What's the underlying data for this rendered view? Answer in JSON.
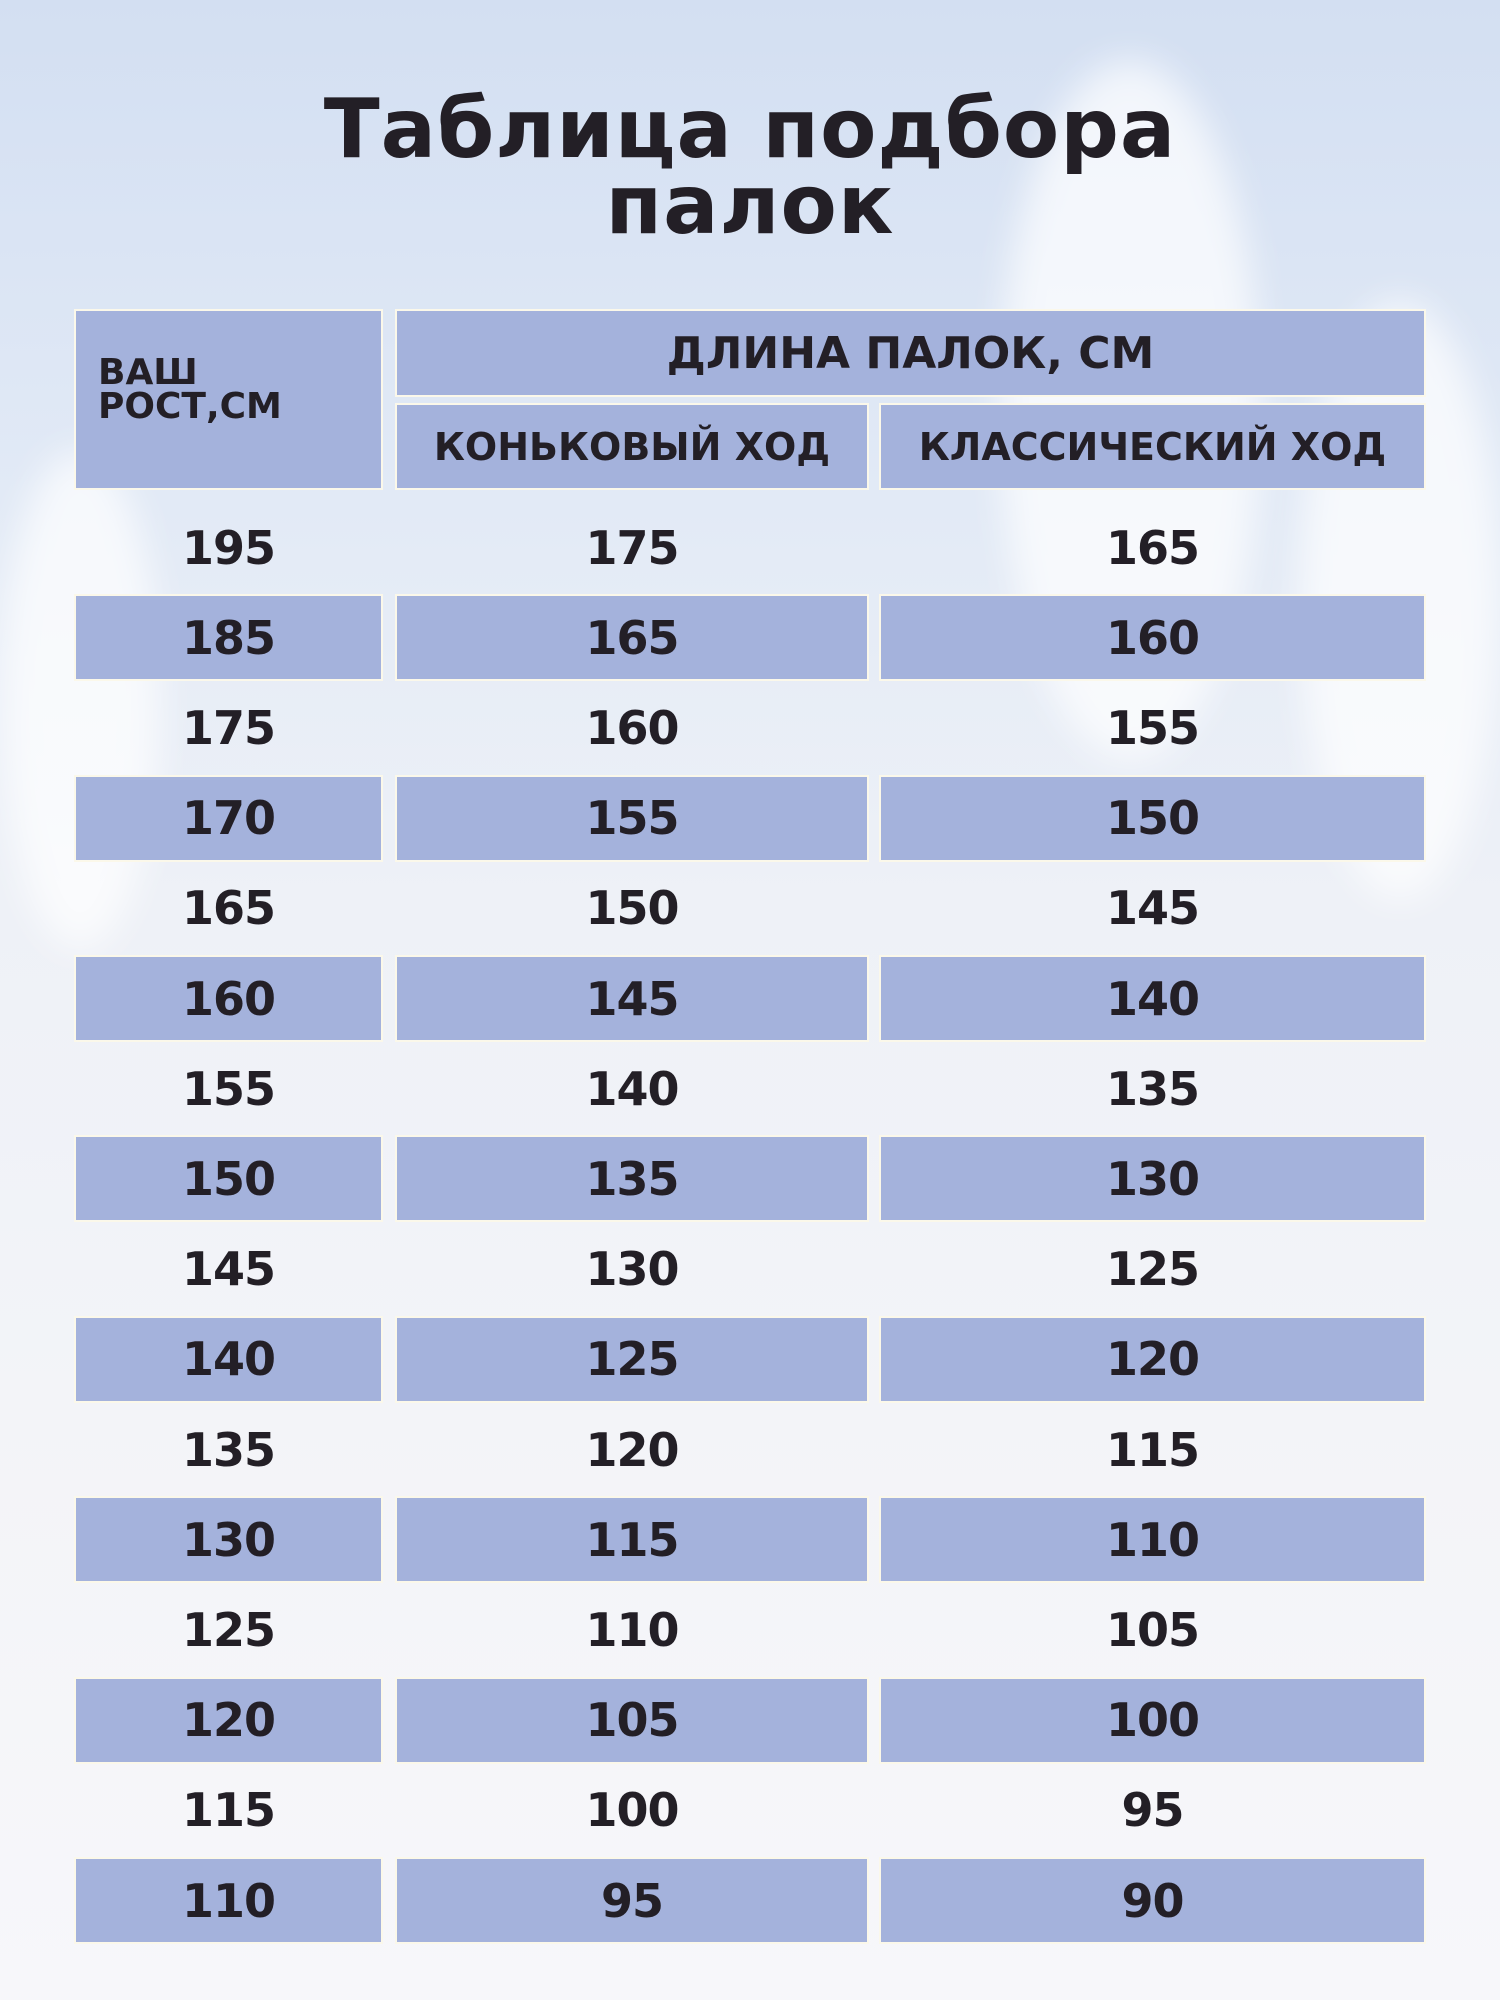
{
  "title": {
    "line1": "Таблица подбора",
    "line2": "палок"
  },
  "table": {
    "height_header": "ВАШ\nРОСТ,СМ",
    "length_header": "ДЛИНА ПАЛОК, СМ",
    "skate_header": "КОНЬКОВЫЙ ХОД",
    "classic_header": "КЛАССИЧЕСКИЙ ХОД",
    "rows": [
      [
        "195",
        "175",
        "165"
      ],
      [
        "185",
        "165",
        "160"
      ],
      [
        "175",
        "160",
        "155"
      ],
      [
        "170",
        "155",
        "150"
      ],
      [
        "165",
        "150",
        "145"
      ],
      [
        "160",
        "145",
        "140"
      ],
      [
        "155",
        "140",
        "135"
      ],
      [
        "150",
        "135",
        "130"
      ],
      [
        "145",
        "130",
        "125"
      ],
      [
        "140",
        "125",
        "120"
      ],
      [
        "135",
        "120",
        "115"
      ],
      [
        "130",
        "115",
        "110"
      ],
      [
        "125",
        "110",
        "105"
      ],
      [
        "120",
        "105",
        "100"
      ],
      [
        "115",
        "100",
        "95"
      ],
      [
        "110",
        "95",
        "90"
      ]
    ]
  },
  "colors": {
    "cell_fill": "#a4b2dc",
    "text": "#231f26",
    "cell_border": "#fbf8ea"
  }
}
